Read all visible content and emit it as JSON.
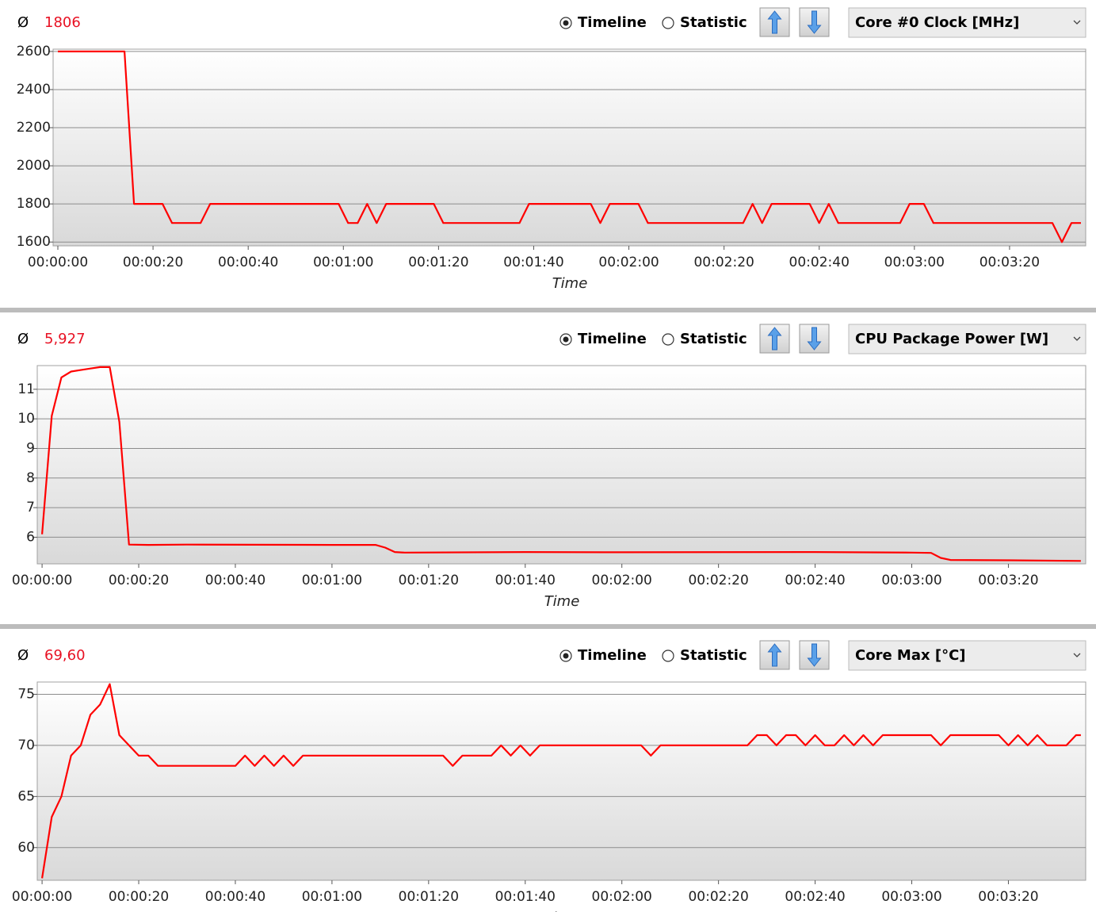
{
  "panels": [
    {
      "avg_symbol": "Ø",
      "average": "1806",
      "timeline": "Timeline",
      "statistic": "Statistic",
      "sensor": "Core #0 Clock [MHz]"
    },
    {
      "avg_symbol": "Ø",
      "average": "5,927",
      "timeline": "Timeline",
      "statistic": "Statistic",
      "sensor": "CPU Package Power [W]"
    },
    {
      "avg_symbol": "Ø",
      "average": "69,60",
      "timeline": "Timeline",
      "statistic": "Statistic",
      "sensor": "Core Max [°C]"
    }
  ],
  "chart_data": [
    {
      "type": "line",
      "xlabel": "Time",
      "color": "#ff0000",
      "x": [
        0,
        14,
        16,
        22,
        24,
        30,
        32,
        59,
        61,
        63,
        65,
        67,
        69,
        79,
        81,
        97,
        99,
        112,
        114,
        116,
        122,
        124,
        144,
        146,
        148,
        150,
        158,
        160,
        162,
        164,
        177,
        179,
        182,
        184,
        209,
        211,
        213,
        215
      ],
      "values": [
        2600,
        2600,
        1800,
        1800,
        1700,
        1700,
        1800,
        1800,
        1700,
        1700,
        1800,
        1700,
        1800,
        1800,
        1700,
        1700,
        1800,
        1800,
        1700,
        1800,
        1800,
        1700,
        1700,
        1800,
        1700,
        1800,
        1800,
        1700,
        1800,
        1700,
        1700,
        1800,
        1800,
        1700,
        1700,
        1600,
        1700,
        1700
      ],
      "xlim": [
        -1,
        216
      ],
      "ylim": [
        1580,
        2612
      ],
      "yticks": [
        1600,
        1800,
        2000,
        2200,
        2400,
        2600
      ],
      "xticks": [
        {
          "value": 0,
          "label": "00:00:00"
        },
        {
          "value": 20,
          "label": "00:00:20"
        },
        {
          "value": 40,
          "label": "00:00:40"
        },
        {
          "value": 60,
          "label": "00:01:00"
        },
        {
          "value": 80,
          "label": "00:01:20"
        },
        {
          "value": 100,
          "label": "00:01:40"
        },
        {
          "value": 120,
          "label": "00:02:00"
        },
        {
          "value": 140,
          "label": "00:02:20"
        },
        {
          "value": 160,
          "label": "00:02:40"
        },
        {
          "value": 180,
          "label": "00:03:00"
        },
        {
          "value": 200,
          "label": "00:03:20"
        }
      ],
      "grid": true
    },
    {
      "type": "line",
      "xlabel": "Time",
      "color": "#ff0000",
      "x": [
        0,
        2,
        4,
        6,
        8,
        10,
        12,
        14,
        16,
        18,
        22,
        30,
        60,
        69,
        71,
        73,
        75,
        100,
        120,
        160,
        180,
        184,
        186,
        188,
        200,
        215
      ],
      "values": [
        6.1,
        10.1,
        11.4,
        11.6,
        11.65,
        11.7,
        11.75,
        11.75,
        9.9,
        5.75,
        5.74,
        5.75,
        5.74,
        5.74,
        5.65,
        5.5,
        5.48,
        5.5,
        5.49,
        5.5,
        5.48,
        5.47,
        5.3,
        5.23,
        5.22,
        5.2
      ],
      "xlim": [
        -1,
        216
      ],
      "ylim": [
        5.1,
        11.8
      ],
      "yticks": [
        6,
        7,
        8,
        9,
        10,
        11
      ],
      "xticks": [
        {
          "value": 0,
          "label": "00:00:00"
        },
        {
          "value": 20,
          "label": "00:00:20"
        },
        {
          "value": 40,
          "label": "00:00:40"
        },
        {
          "value": 60,
          "label": "00:01:00"
        },
        {
          "value": 80,
          "label": "00:01:20"
        },
        {
          "value": 100,
          "label": "00:01:40"
        },
        {
          "value": 120,
          "label": "00:02:00"
        },
        {
          "value": 140,
          "label": "00:02:20"
        },
        {
          "value": 160,
          "label": "00:02:40"
        },
        {
          "value": 180,
          "label": "00:03:00"
        },
        {
          "value": 200,
          "label": "00:03:20"
        }
      ],
      "grid": true
    },
    {
      "type": "line",
      "xlabel": "Time",
      "color": "#ff0000",
      "x": [
        0,
        2,
        4,
        6,
        8,
        10,
        12,
        14,
        16,
        18,
        20,
        22,
        24,
        40,
        42,
        44,
        46,
        48,
        50,
        52,
        54,
        83,
        85,
        87,
        93,
        95,
        97,
        99,
        101,
        103,
        124,
        126,
        128,
        146,
        148,
        150,
        152,
        154,
        156,
        158,
        160,
        162,
        164,
        166,
        168,
        170,
        172,
        174,
        176,
        184,
        186,
        188,
        198,
        200,
        202,
        204,
        206,
        208,
        212,
        214,
        215
      ],
      "values": [
        57,
        63,
        65,
        69,
        70,
        73,
        74,
        76,
        71,
        70,
        69,
        69,
        68,
        68,
        69,
        68,
        69,
        68,
        69,
        68,
        69,
        69,
        68,
        69,
        69,
        70,
        69,
        70,
        69,
        70,
        70,
        69,
        70,
        70,
        71,
        71,
        70,
        71,
        71,
        70,
        71,
        70,
        70,
        71,
        70,
        71,
        70,
        71,
        71,
        71,
        70,
        71,
        71,
        70,
        71,
        70,
        71,
        70,
        70,
        71,
        71
      ],
      "xlim": [
        -1,
        216
      ],
      "ylim": [
        56.8,
        76.2
      ],
      "yticks": [
        60,
        65,
        70,
        75
      ],
      "xticks": [
        {
          "value": 0,
          "label": "00:00:00"
        },
        {
          "value": 20,
          "label": "00:00:20"
        },
        {
          "value": 40,
          "label": "00:00:40"
        },
        {
          "value": 60,
          "label": "00:01:00"
        },
        {
          "value": 80,
          "label": "00:01:20"
        },
        {
          "value": 100,
          "label": "00:01:40"
        },
        {
          "value": 120,
          "label": "00:02:00"
        },
        {
          "value": 140,
          "label": "00:02:20"
        },
        {
          "value": 160,
          "label": "00:02:40"
        },
        {
          "value": 180,
          "label": "00:03:00"
        },
        {
          "value": 200,
          "label": "00:03:20"
        }
      ],
      "grid": true
    }
  ]
}
